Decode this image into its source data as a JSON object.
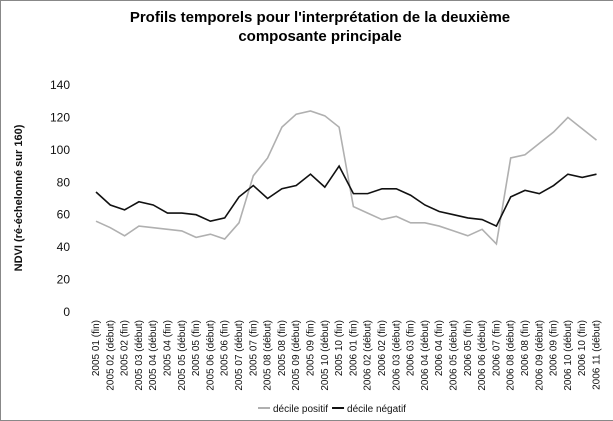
{
  "chart_data": {
    "type": "line",
    "title": "Profils temporels pour l'interprétation de la deuxième composante principale",
    "y_label": "NDVI (ré-échelonné sur 160)",
    "categories": [
      "2005 01 (fin)",
      "2005 02 (début)",
      "2005 02 (fin)",
      "2005 03 (début)",
      "2005 04 (début)",
      "2005 04 (fin)",
      "2005 05 (début)",
      "2005 05 (fin)",
      "2005 06 (début)",
      "2005 06 (fin)",
      "2005 07 (début)",
      "2005 07 (fin)",
      "2005 08 (début)",
      "2005 08 (fin)",
      "2005 09 (début)",
      "2005 09 (fin)",
      "2005 10 (début)",
      "2005 10 (fin)",
      "2006 01 (fin)",
      "2006 02 (début)",
      "2006 02 (fin)",
      "2006 03 (début)",
      "2006 03 (fin)",
      "2006 04 (début)",
      "2006 04 (fin)",
      "2006 05 (début)",
      "2006 05 (fin)",
      "2006 06 (début)",
      "2006 07 (fin)",
      "2006 08 (début)",
      "2006 08 (fin)",
      "2006 09 (début)",
      "2006 09 (fin)",
      "2006 10 (début)",
      "2006 10 (fin)",
      "2006 11 (début)"
    ],
    "series": [
      {
        "name": "décile positif",
        "color": "#b0b0b0",
        "values": [
          56,
          52,
          47,
          53,
          52,
          51,
          50,
          46,
          48,
          45,
          55,
          84,
          95,
          114,
          122,
          124,
          121,
          114,
          65,
          61,
          57,
          59,
          55,
          55,
          53,
          50,
          47,
          51,
          42,
          95,
          97,
          104,
          111,
          120,
          113,
          106
        ]
      },
      {
        "name": "décile négatif",
        "color": "#111111",
        "values": [
          74,
          66,
          63,
          68,
          66,
          61,
          61,
          60,
          56,
          58,
          71,
          78,
          70,
          76,
          78,
          85,
          77,
          90,
          73,
          73,
          76,
          76,
          72,
          66,
          62,
          60,
          58,
          57,
          53,
          71,
          75,
          73,
          78,
          85,
          83,
          85
        ]
      }
    ],
    "ylim": [
      0,
      140
    ],
    "yticks": [
      0,
      20,
      40,
      60,
      80,
      100,
      120,
      140
    ],
    "grid": false
  }
}
